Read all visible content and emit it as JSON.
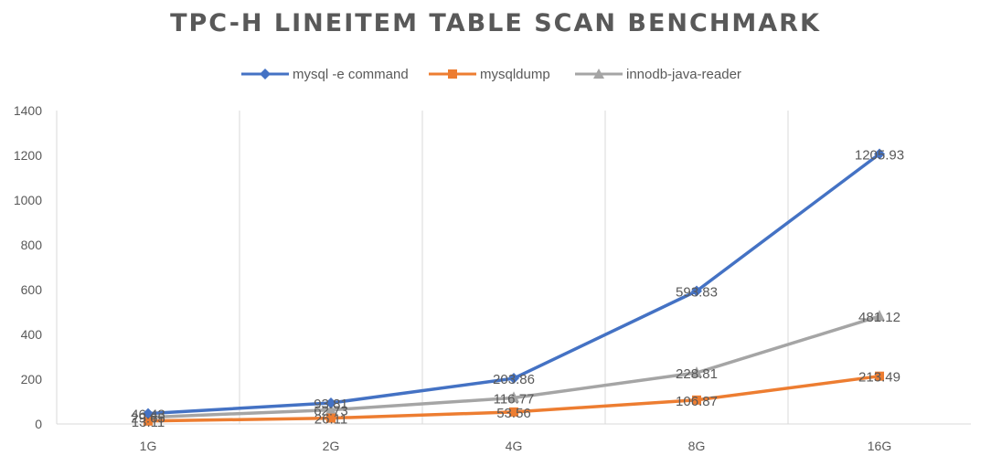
{
  "chart_data": {
    "type": "line",
    "title": "TPC-H LINEITEM TABLE SCAN BENCHMARK",
    "categories": [
      "1G",
      "2G",
      "4G",
      "8G",
      "16G"
    ],
    "ylim": [
      0,
      1400
    ],
    "yticks": [
      0,
      200,
      400,
      600,
      800,
      1000,
      1200,
      1400
    ],
    "grid": "vertical",
    "legend_position": "top",
    "series": [
      {
        "name": "mysql -e command",
        "values": [
          46.43,
          93.81,
          203.86,
          593.83,
          1205.93
        ],
        "labels": [
          "46.43",
          "93.81",
          "203.86",
          "593.83",
          "1205.93"
        ],
        "color": "#4472C4",
        "marker": "diamond"
      },
      {
        "name": "mysqldump",
        "values": [
          13.11,
          26.11,
          53.56,
          106.87,
          213.49
        ],
        "labels": [
          "13.11",
          "26.11",
          "53.56",
          "106.87",
          "213.49"
        ],
        "color": "#ED7D31",
        "marker": "square"
      },
      {
        "name": "innodb-java-reader",
        "values": [
          29.65,
          62.73,
          116.77,
          228.81,
          481.12
        ],
        "labels": [
          "29.65",
          "62.73",
          "116.77",
          "228.81",
          "481.12"
        ],
        "color": "#A5A5A5",
        "marker": "triangle"
      }
    ]
  }
}
